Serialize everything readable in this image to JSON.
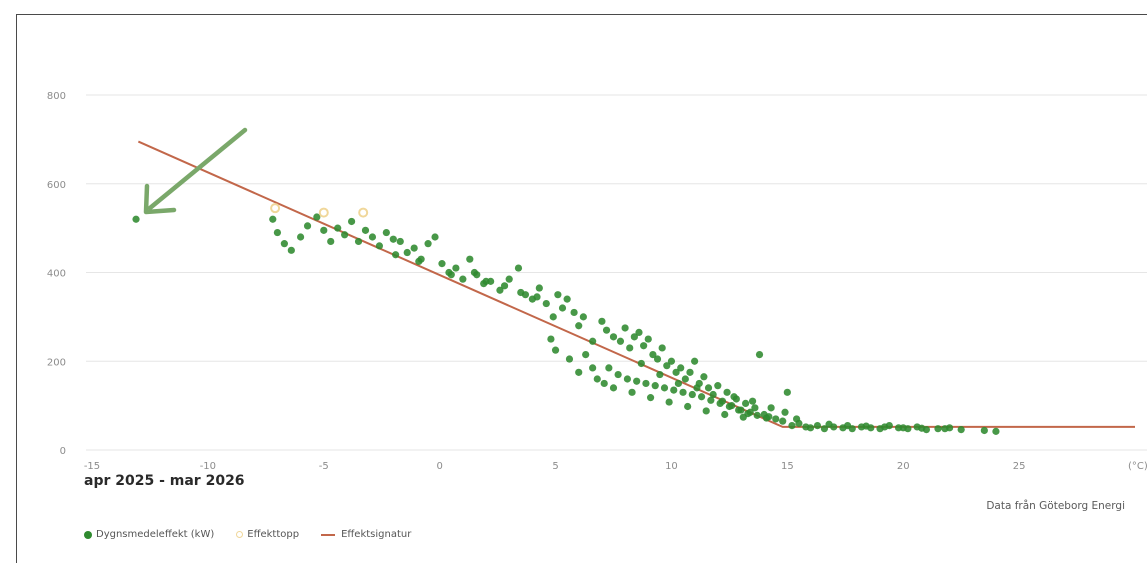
{
  "chart_data": {
    "type": "scatter",
    "title": "apr 2025 - mar 2026",
    "source": "Data från Göteborg Energi",
    "x_unit_label": "(°C)",
    "xlim": [
      -15,
      30
    ],
    "ylim": [
      0,
      900
    ],
    "x_ticks": [
      -15,
      -10,
      -5,
      0,
      5,
      10,
      15,
      20,
      25
    ],
    "y_ticks": [
      0,
      200,
      400,
      600,
      800
    ],
    "grid": "horizontal",
    "legend_placement": "bottom-left",
    "colors": {
      "daily": "#2f8a2f",
      "peak": "#f0d79a",
      "signature": "#c2674a",
      "arrow": "#7aa86a"
    },
    "series": [
      {
        "name": "Dygnsmedeleffekt (kW)",
        "kind": "scatter",
        "points": [
          [
            -13.1,
            520
          ],
          [
            -7.2,
            520
          ],
          [
            -7.0,
            490
          ],
          [
            -6.7,
            465
          ],
          [
            -6.4,
            450
          ],
          [
            -6.0,
            480
          ],
          [
            -5.7,
            505
          ],
          [
            -5.3,
            525
          ],
          [
            -5.0,
            495
          ],
          [
            -4.7,
            470
          ],
          [
            -4.4,
            500
          ],
          [
            -4.1,
            485
          ],
          [
            -3.8,
            515
          ],
          [
            -3.5,
            470
          ],
          [
            -3.2,
            495
          ],
          [
            -2.9,
            480
          ],
          [
            -2.6,
            460
          ],
          [
            -2.3,
            490
          ],
          [
            -2.0,
            475
          ],
          [
            -1.7,
            470
          ],
          [
            -1.4,
            445
          ],
          [
            -1.1,
            455
          ],
          [
            -0.8,
            430
          ],
          [
            -0.5,
            465
          ],
          [
            -0.2,
            480
          ],
          [
            0.1,
            420
          ],
          [
            0.4,
            400
          ],
          [
            0.7,
            410
          ],
          [
            1.0,
            385
          ],
          [
            1.3,
            430
          ],
          [
            1.6,
            395
          ],
          [
            1.9,
            375
          ],
          [
            2.2,
            380
          ],
          [
            2.6,
            360
          ],
          [
            3.0,
            385
          ],
          [
            3.4,
            410
          ],
          [
            3.7,
            350
          ],
          [
            4.0,
            340
          ],
          [
            4.3,
            365
          ],
          [
            4.6,
            330
          ],
          [
            4.9,
            300
          ],
          [
            5.1,
            350
          ],
          [
            5.3,
            320
          ],
          [
            5.5,
            340
          ],
          [
            5.8,
            310
          ],
          [
            6.0,
            280
          ],
          [
            6.2,
            300
          ],
          [
            4.8,
            250
          ],
          [
            5.0,
            225
          ],
          [
            5.6,
            205
          ],
          [
            6.0,
            175
          ],
          [
            6.3,
            215
          ],
          [
            6.6,
            185
          ],
          [
            7.0,
            290
          ],
          [
            7.2,
            270
          ],
          [
            7.5,
            255
          ],
          [
            7.8,
            245
          ],
          [
            8.0,
            275
          ],
          [
            8.2,
            230
          ],
          [
            8.4,
            255
          ],
          [
            8.6,
            265
          ],
          [
            8.8,
            235
          ],
          [
            9.0,
            250
          ],
          [
            9.2,
            215
          ],
          [
            9.4,
            205
          ],
          [
            9.6,
            230
          ],
          [
            9.8,
            190
          ],
          [
            10.0,
            200
          ],
          [
            10.2,
            175
          ],
          [
            10.4,
            185
          ],
          [
            10.6,
            160
          ],
          [
            10.8,
            175
          ],
          [
            11.0,
            200
          ],
          [
            11.2,
            150
          ],
          [
            11.4,
            165
          ],
          [
            11.6,
            140
          ],
          [
            11.8,
            125
          ],
          [
            12.0,
            145
          ],
          [
            12.2,
            110
          ],
          [
            12.4,
            130
          ],
          [
            12.6,
            100
          ],
          [
            12.8,
            115
          ],
          [
            13.0,
            90
          ],
          [
            13.2,
            105
          ],
          [
            13.4,
            85
          ],
          [
            13.6,
            95
          ],
          [
            13.8,
            215
          ],
          [
            14.0,
            80
          ],
          [
            14.2,
            75
          ],
          [
            14.5,
            70
          ],
          [
            14.8,
            65
          ],
          [
            15.0,
            130
          ],
          [
            15.2,
            55
          ],
          [
            15.5,
            60
          ],
          [
            15.8,
            52
          ],
          [
            16.0,
            50
          ],
          [
            16.3,
            55
          ],
          [
            16.6,
            48
          ],
          [
            17.0,
            52
          ],
          [
            17.4,
            50
          ],
          [
            17.8,
            48
          ],
          [
            18.2,
            52
          ],
          [
            18.6,
            50
          ],
          [
            19.0,
            48
          ],
          [
            19.4,
            55
          ],
          [
            19.8,
            50
          ],
          [
            20.2,
            48
          ],
          [
            20.6,
            52
          ],
          [
            21.0,
            46
          ],
          [
            21.5,
            48
          ],
          [
            22.0,
            50
          ],
          [
            22.5,
            46
          ],
          [
            23.5,
            44
          ],
          [
            24.0,
            42
          ],
          [
            7.3,
            185
          ],
          [
            7.7,
            170
          ],
          [
            8.1,
            160
          ],
          [
            8.5,
            155
          ],
          [
            8.9,
            150
          ],
          [
            9.3,
            145
          ],
          [
            9.7,
            140
          ],
          [
            10.1,
            135
          ],
          [
            10.5,
            130
          ],
          [
            10.9,
            125
          ],
          [
            11.3,
            120
          ],
          [
            11.7,
            112
          ],
          [
            12.1,
            105
          ],
          [
            12.5,
            98
          ],
          [
            12.9,
            90
          ],
          [
            13.3,
            82
          ],
          [
            13.7,
            78
          ],
          [
            14.1,
            72
          ],
          [
            6.8,
            160
          ],
          [
            7.1,
            150
          ],
          [
            7.5,
            140
          ],
          [
            8.3,
            130
          ],
          [
            9.1,
            118
          ],
          [
            9.9,
            108
          ],
          [
            10.7,
            98
          ],
          [
            11.5,
            88
          ],
          [
            12.3,
            80
          ],
          [
            13.1,
            74
          ],
          [
            2.0,
            380
          ],
          [
            2.8,
            370
          ],
          [
            3.5,
            355
          ],
          [
            -1.9,
            440
          ],
          [
            -0.9,
            425
          ],
          [
            0.5,
            395
          ],
          [
            1.5,
            400
          ],
          [
            4.2,
            345
          ],
          [
            6.6,
            245
          ],
          [
            8.7,
            195
          ],
          [
            9.5,
            170
          ],
          [
            10.3,
            150
          ],
          [
            11.1,
            140
          ],
          [
            12.7,
            120
          ],
          [
            13.5,
            110
          ],
          [
            14.3,
            95
          ],
          [
            14.9,
            85
          ],
          [
            15.4,
            70
          ],
          [
            16.8,
            58
          ],
          [
            17.6,
            55
          ],
          [
            18.4,
            54
          ],
          [
            19.2,
            52
          ],
          [
            20.0,
            50
          ],
          [
            20.8,
            49
          ],
          [
            21.8,
            48
          ]
        ]
      },
      {
        "name": "Effekttopp",
        "kind": "scatter",
        "points": [
          [
            -7.1,
            545
          ],
          [
            -5.0,
            535
          ],
          [
            -3.3,
            535
          ]
        ]
      },
      {
        "name": "Effektsignatur",
        "kind": "line",
        "points": [
          [
            -13.0,
            695
          ],
          [
            14.8,
            52
          ],
          [
            30.0,
            52
          ]
        ]
      }
    ]
  }
}
